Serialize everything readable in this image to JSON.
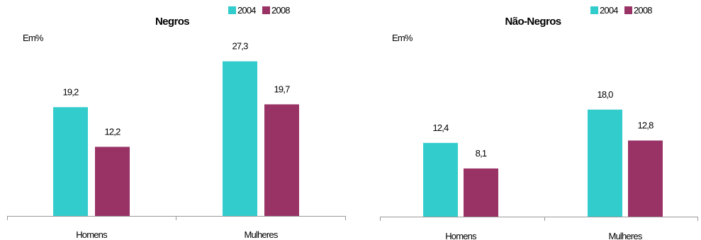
{
  "colors": {
    "2004": "#33CCCC",
    "2008": "#993366",
    "axis": "#999999"
  },
  "chart_data": [
    {
      "type": "bar",
      "title": "Negros",
      "unit_label": "Em%",
      "categories": [
        "Homens",
        "Mulheres"
      ],
      "series": [
        {
          "name": "2004",
          "values": [
            19.2,
            27.3
          ],
          "labels": [
            "19,2",
            "27,3"
          ]
        },
        {
          "name": "2008",
          "values": [
            12.2,
            19.7
          ],
          "labels": [
            "12,2",
            "19,7"
          ]
        }
      ],
      "legend_position": "top-right",
      "grid": false
    },
    {
      "type": "bar",
      "title": "Não-Negros",
      "unit_label": "Em%",
      "categories": [
        "Homens",
        "Mulheres"
      ],
      "series": [
        {
          "name": "2004",
          "values": [
            12.4,
            18.0
          ],
          "labels": [
            "12,4",
            "18,0"
          ]
        },
        {
          "name": "2008",
          "values": [
            8.1,
            12.8
          ],
          "labels": [
            "8,1",
            "12,8"
          ]
        }
      ],
      "legend_position": "top-right",
      "grid": false
    }
  ]
}
